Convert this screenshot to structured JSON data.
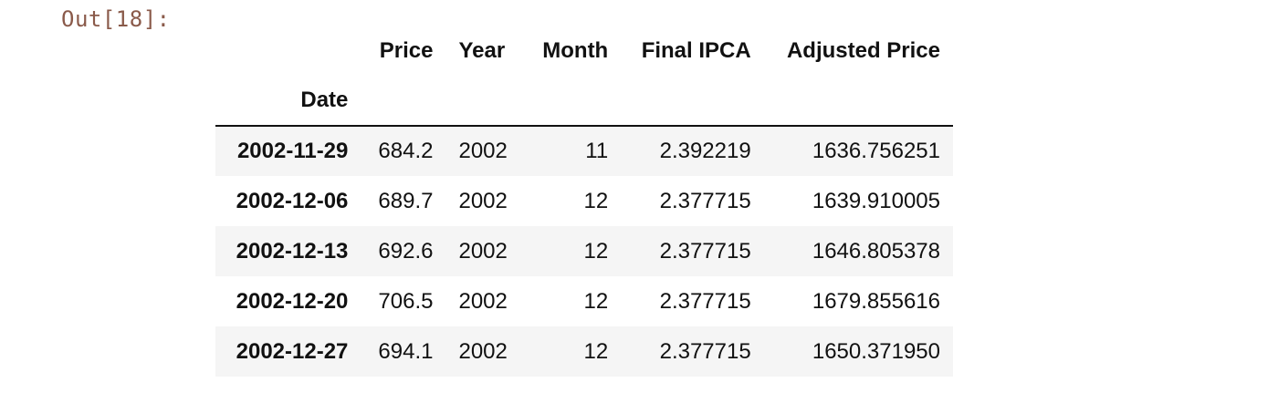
{
  "prompt": "Out[18]:",
  "table": {
    "columns": [
      "Price",
      "Year",
      "Month",
      "Final IPCA",
      "Adjusted Price"
    ],
    "index_name": "Date",
    "rows": [
      {
        "date": "2002-11-29",
        "price": "684.2",
        "year": "2002",
        "month": "11",
        "ipca": "2.392219",
        "adjusted": "1636.756251"
      },
      {
        "date": "2002-12-06",
        "price": "689.7",
        "year": "2002",
        "month": "12",
        "ipca": "2.377715",
        "adjusted": "1639.910005"
      },
      {
        "date": "2002-12-13",
        "price": "692.6",
        "year": "2002",
        "month": "12",
        "ipca": "2.377715",
        "adjusted": "1646.805378"
      },
      {
        "date": "2002-12-20",
        "price": "706.5",
        "year": "2002",
        "month": "12",
        "ipca": "2.377715",
        "adjusted": "1679.855616"
      },
      {
        "date": "2002-12-27",
        "price": "694.1",
        "year": "2002",
        "month": "12",
        "ipca": "2.377715",
        "adjusted": "1650.371950"
      }
    ]
  }
}
